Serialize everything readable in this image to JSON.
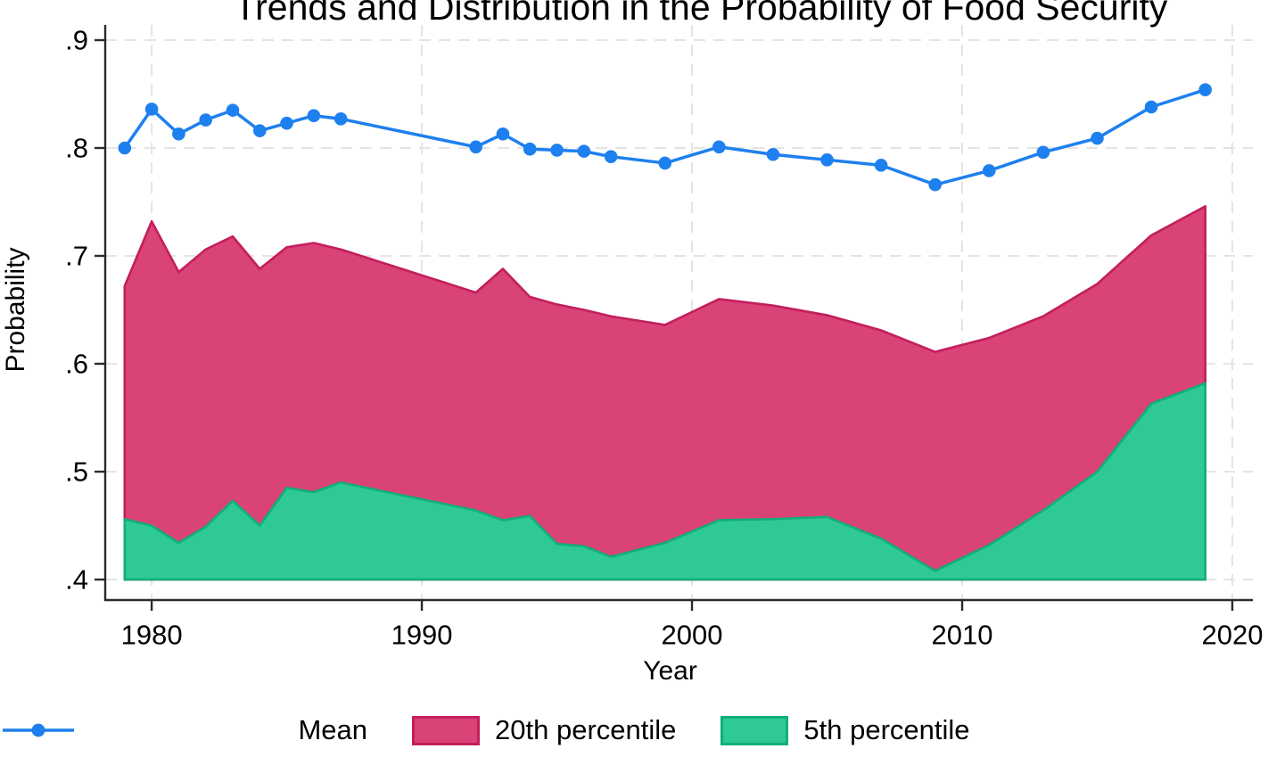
{
  "title": "Trends and Distribution in the Probability of Food Security",
  "chart_data": {
    "type": "area",
    "title": "Trends and Distribution in the Probability of Food Security",
    "xlabel": "Year",
    "ylabel": "Probability",
    "xlim": [
      1978.28,
      2020.76
    ],
    "ylim": [
      0.4,
      0.9
    ],
    "x_ticks": [
      1980,
      1990,
      2000,
      2010,
      2020
    ],
    "y_ticks": [
      {
        "v": 0.4,
        "label": ".4"
      },
      {
        "v": 0.5,
        "label": ".5"
      },
      {
        "v": 0.6,
        "label": ".6"
      },
      {
        "v": 0.7,
        "label": ".7"
      },
      {
        "v": 0.8,
        "label": ".8"
      },
      {
        "v": 0.9,
        "label": ".9"
      }
    ],
    "grid": {
      "on": true,
      "style": "dashed",
      "color": "#E4E4E4"
    },
    "legend_position": "bottom",
    "area_baseline": 0.4,
    "x": [
      1979,
      1980,
      1981,
      1982,
      1983,
      1984,
      1985,
      1986,
      1987,
      1992,
      1993,
      1994,
      1995,
      1996,
      1997,
      1999,
      2001,
      2003,
      2005,
      2007,
      2009,
      2011,
      2013,
      2015,
      2017,
      2019
    ],
    "series": [
      {
        "name": "Mean",
        "kind": "line",
        "color": "#1E80EE",
        "values": [
          0.8,
          0.836,
          0.813,
          0.826,
          0.835,
          0.816,
          0.823,
          0.83,
          0.827,
          0.801,
          0.813,
          0.799,
          0.798,
          0.797,
          0.792,
          0.786,
          0.801,
          0.794,
          0.789,
          0.784,
          0.766,
          0.779,
          0.796,
          0.809,
          0.838,
          0.854
        ]
      },
      {
        "name": "20th percentile",
        "kind": "area",
        "fill": "#D94376",
        "stroke": "#C31E5E",
        "values": [
          0.672,
          0.732,
          0.685,
          0.706,
          0.718,
          0.688,
          0.708,
          0.712,
          0.706,
          0.666,
          0.688,
          0.662,
          0.655,
          0.65,
          0.644,
          0.636,
          0.66,
          0.654,
          0.645,
          0.631,
          0.611,
          0.624,
          0.644,
          0.674,
          0.719,
          0.746
        ]
      },
      {
        "name": "5th percentile",
        "kind": "area",
        "fill": "#2FC993",
        "stroke": "#10AF7D",
        "values": [
          0.456,
          0.45,
          0.434,
          0.449,
          0.473,
          0.45,
          0.485,
          0.481,
          0.49,
          0.464,
          0.455,
          0.459,
          0.433,
          0.431,
          0.421,
          0.434,
          0.455,
          0.456,
          0.458,
          0.438,
          0.408,
          0.432,
          0.464,
          0.5,
          0.563,
          0.582
        ]
      }
    ],
    "axis_color": "#2B2B2B"
  },
  "legend": {
    "mean_label": "Mean",
    "p20_label": "20th percentile",
    "p5_label": "5th percentile"
  }
}
